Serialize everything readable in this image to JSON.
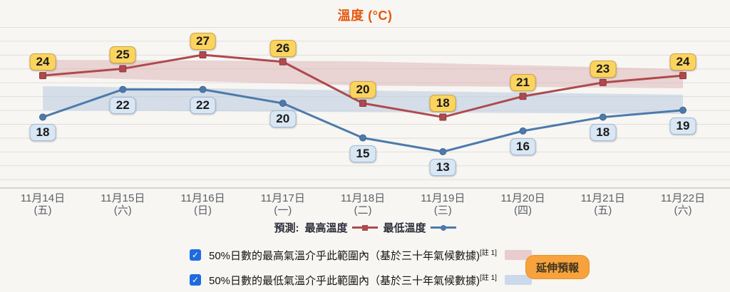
{
  "title": "溫度 (°C)",
  "chart_data": {
    "type": "line",
    "categories_date": [
      "11月14日",
      "11月15日",
      "11月16日",
      "11月17日",
      "11月18日",
      "11月19日",
      "11月20日",
      "11月21日",
      "11月22日"
    ],
    "categories_weekday": [
      "(五)",
      "(六)",
      "(日)",
      "(一)",
      "(二)",
      "(三)",
      "(四)",
      "(五)",
      "(六)"
    ],
    "series": [
      {
        "name": "最高溫度",
        "values": [
          24,
          25,
          27,
          26,
          20,
          18,
          21,
          23,
          24
        ],
        "color": "#ae4a4e",
        "marker": "square",
        "label_style": "max"
      },
      {
        "name": "最低溫度",
        "values": [
          18,
          22,
          22,
          20,
          15,
          13,
          16,
          18,
          19
        ],
        "color": "#4d7aab",
        "marker": "circle",
        "label_style": "min"
      }
    ],
    "bands": [
      {
        "name": "max-climate-range",
        "color": "#dfb6b8"
      },
      {
        "name": "min-climate-range",
        "color": "#b9cadf"
      }
    ],
    "ylim": [
      7,
      31
    ],
    "grid": "horizontal-only",
    "legend_position": "bottom"
  },
  "legend": {
    "prefix": "預測:",
    "max_label": "最高溫度",
    "min_label": "最低溫度"
  },
  "controls": {
    "check_glyph": "✓",
    "checkbox_max": {
      "checked": true,
      "label": "50%日數的最高氣溫介乎此範圍內（基於三十年氣候數據)",
      "note": "[註 1]"
    },
    "checkbox_min": {
      "checked": true,
      "label": "50%日數的最低氣溫介乎此範圍內（基於三十年氣候數據)",
      "note": "[註 1]"
    },
    "extend_button": "延伸預報"
  },
  "colors": {
    "title": "#e4580e",
    "background": "#f7f6f3",
    "gridline": "#e2dfd9",
    "axis_line": "#c2bfb9",
    "max_line": "#ae4a4e",
    "min_line": "#4d7aab",
    "max_label_bg": "#fbd45e",
    "min_label_bg": "#d9e6f4",
    "max_band": "#e9cccd",
    "min_band": "#ccd9ea",
    "checkbox": "#1e6be0",
    "button_bg": "#f7a23c"
  }
}
